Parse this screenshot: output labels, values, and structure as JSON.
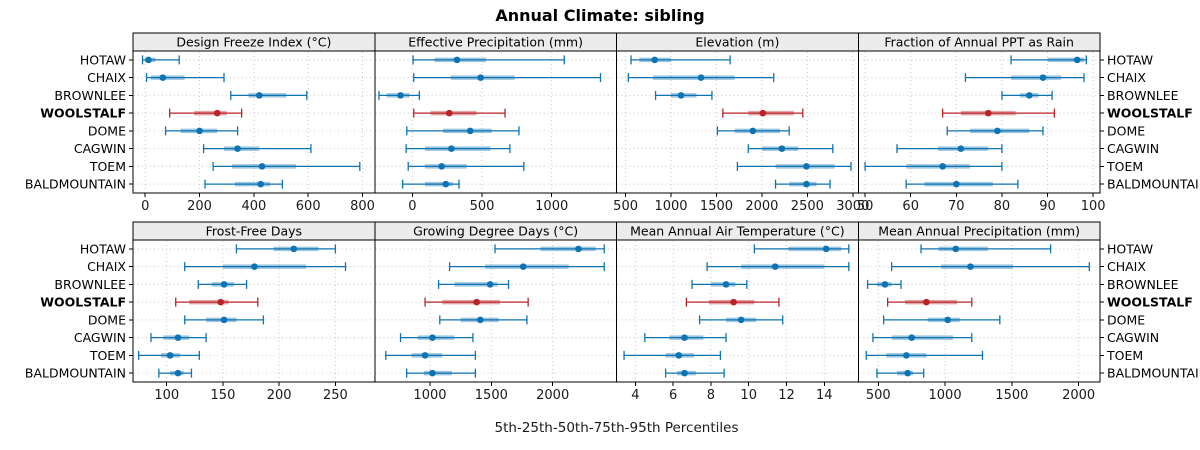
{
  "title": "Annual Climate: sibling",
  "caption": "5th-25th-50th-75th-95th Percentiles",
  "sites": [
    "HOTAW",
    "CHAIX",
    "BROWNLEE",
    "WOOLSTALF",
    "DOME",
    "CAGWIN",
    "TOEM",
    "BALDMOUNTAIN"
  ],
  "highlight_site": "WOOLSTALF",
  "colors": {
    "series": "#0D73B2",
    "highlight": "#B92328",
    "grid": "#C9C9C9",
    "strip_bg": "#ECECEC",
    "border": "#000000",
    "text": "#1a1a1a"
  },
  "chart_data": [
    {
      "type": "dotplot-percentiles",
      "panel": "Design Freeze Index (°C)",
      "row": 0,
      "col": 0,
      "xlim": [
        -45,
        845
      ],
      "ticks": [
        0,
        200,
        400,
        600,
        800
      ],
      "percentile_labels": [
        "5th",
        "25th",
        "50th",
        "75th",
        "95th"
      ],
      "values": [
        [
          -10,
          0,
          12,
          38,
          125
        ],
        [
          5,
          20,
          65,
          145,
          290
        ],
        [
          315,
          380,
          420,
          520,
          595
        ],
        [
          90,
          180,
          265,
          300,
          355
        ],
        [
          75,
          130,
          200,
          265,
          340
        ],
        [
          215,
          290,
          340,
          420,
          610
        ],
        [
          250,
          320,
          430,
          555,
          790
        ],
        [
          220,
          330,
          425,
          460,
          505
        ]
      ]
    },
    {
      "type": "dotplot-percentiles",
      "panel": "Effective Precipitation (mm)",
      "row": 0,
      "col": 1,
      "xlim": [
        -270,
        1465
      ],
      "ticks": [
        0,
        500,
        1000
      ],
      "percentile_labels": [
        "5th",
        "25th",
        "50th",
        "75th",
        "95th"
      ],
      "values": [
        [
          5,
          160,
          320,
          530,
          1090
        ],
        [
          10,
          275,
          490,
          735,
          1350
        ],
        [
          -240,
          -185,
          -85,
          -20,
          50
        ],
        [
          10,
          130,
          265,
          460,
          665
        ],
        [
          -40,
          220,
          415,
          570,
          765
        ],
        [
          -45,
          90,
          280,
          560,
          700
        ],
        [
          -30,
          90,
          210,
          390,
          800
        ],
        [
          -70,
          90,
          240,
          290,
          335
        ]
      ]
    },
    {
      "type": "dotplot-percentiles",
      "panel": "Elevation (m)",
      "row": 0,
      "col": 2,
      "xlim": [
        400,
        3060
      ],
      "ticks": [
        500,
        1000,
        1500,
        2000,
        2500,
        3000
      ],
      "percentile_labels": [
        "5th",
        "25th",
        "50th",
        "75th",
        "95th"
      ],
      "values": [
        [
          560,
          650,
          820,
          1000,
          1650
        ],
        [
          530,
          800,
          1330,
          1700,
          2130
        ],
        [
          830,
          1000,
          1110,
          1280,
          1450
        ],
        [
          1570,
          1850,
          2010,
          2350,
          2450
        ],
        [
          1510,
          1700,
          1900,
          2200,
          2300
        ],
        [
          1850,
          2000,
          2220,
          2400,
          2780
        ],
        [
          1730,
          2150,
          2490,
          2800,
          2980
        ],
        [
          2150,
          2300,
          2490,
          2600,
          2750
        ]
      ]
    },
    {
      "type": "dotplot-percentiles",
      "panel": "Fraction of Annual PPT as Rain",
      "row": 0,
      "col": 3,
      "xlim": [
        48.5,
        101.5
      ],
      "ticks": [
        50,
        60,
        70,
        80,
        90,
        100
      ],
      "percentile_labels": [
        "5th",
        "25th",
        "50th",
        "75th",
        "95th"
      ],
      "values": [
        [
          82,
          90,
          96.5,
          98,
          98.5
        ],
        [
          72,
          82,
          89,
          93,
          98
        ],
        [
          80,
          84,
          86,
          88,
          91
        ],
        [
          67,
          71,
          77,
          83,
          91.5
        ],
        [
          68,
          73,
          79,
          86,
          89
        ],
        [
          57,
          66,
          71,
          77,
          80
        ],
        [
          50,
          59,
          67,
          73,
          80
        ],
        [
          59,
          63,
          70,
          78,
          83.5
        ]
      ]
    },
    {
      "type": "dotplot-percentiles",
      "panel": "Frost-Free Days",
      "row": 1,
      "col": 0,
      "xlim": [
        70,
        285
      ],
      "ticks": [
        100,
        150,
        200,
        250
      ],
      "percentile_labels": [
        "5th",
        "25th",
        "50th",
        "75th",
        "95th"
      ],
      "values": [
        [
          162,
          195,
          213,
          235,
          250
        ],
        [
          116,
          150,
          178,
          224,
          259
        ],
        [
          128,
          140,
          151,
          160,
          171
        ],
        [
          108,
          120,
          148,
          155,
          181
        ],
        [
          116,
          135,
          151,
          162,
          186
        ],
        [
          86,
          97,
          110,
          120,
          135
        ],
        [
          75,
          95,
          103,
          112,
          129
        ],
        [
          93,
          103,
          110,
          115,
          122
        ]
      ]
    },
    {
      "type": "dotplot-percentiles",
      "panel": "Growing Degree Days (°C)",
      "row": 1,
      "col": 1,
      "xlim": [
        550,
        2520
      ],
      "ticks": [
        1000,
        1500,
        2000
      ],
      "percentile_labels": [
        "5th",
        "25th",
        "50th",
        "75th",
        "95th"
      ],
      "values": [
        [
          1530,
          1900,
          2210,
          2350,
          2420
        ],
        [
          1160,
          1450,
          1760,
          2130,
          2420
        ],
        [
          1070,
          1200,
          1490,
          1550,
          1640
        ],
        [
          960,
          1100,
          1380,
          1570,
          1800
        ],
        [
          1080,
          1250,
          1410,
          1560,
          1790
        ],
        [
          760,
          900,
          1020,
          1200,
          1350
        ],
        [
          640,
          850,
          960,
          1100,
          1370
        ],
        [
          810,
          950,
          1020,
          1180,
          1370
        ]
      ]
    },
    {
      "type": "dotplot-percentiles",
      "panel": "Mean Annual Air Temperature (°C)",
      "row": 1,
      "col": 2,
      "xlim": [
        3.0,
        15.8
      ],
      "ticks": [
        4,
        6,
        8,
        10,
        12,
        14
      ],
      "percentile_labels": [
        "5th",
        "25th",
        "50th",
        "75th",
        "95th"
      ],
      "values": [
        [
          10.3,
          12.1,
          14.1,
          14.9,
          15.3
        ],
        [
          7.8,
          9.6,
          11.4,
          14.0,
          15.3
        ],
        [
          7.0,
          8.0,
          8.8,
          9.3,
          9.9
        ],
        [
          6.7,
          7.9,
          9.2,
          10.3,
          11.6
        ],
        [
          7.4,
          8.8,
          9.6,
          10.4,
          11.8
        ],
        [
          4.5,
          5.8,
          6.6,
          7.6,
          8.8
        ],
        [
          3.4,
          5.6,
          6.3,
          7.1,
          8.5
        ],
        [
          5.6,
          6.2,
          6.6,
          7.2,
          8.7
        ]
      ]
    },
    {
      "type": "dotplot-percentiles",
      "panel": "Mean Annual Precipitation (mm)",
      "row": 1,
      "col": 3,
      "xlim": [
        350,
        2160
      ],
      "ticks": [
        500,
        1000,
        1500,
        2000
      ],
      "percentile_labels": [
        "5th",
        "25th",
        "50th",
        "75th",
        "95th"
      ],
      "values": [
        [
          820,
          950,
          1080,
          1320,
          1790
        ],
        [
          600,
          970,
          1190,
          1510,
          2080
        ],
        [
          420,
          490,
          550,
          600,
          670
        ],
        [
          570,
          700,
          860,
          1090,
          1200
        ],
        [
          540,
          870,
          1020,
          1110,
          1410
        ],
        [
          460,
          600,
          750,
          1060,
          1200
        ],
        [
          410,
          560,
          710,
          860,
          1280
        ],
        [
          490,
          640,
          720,
          760,
          840
        ]
      ]
    }
  ]
}
